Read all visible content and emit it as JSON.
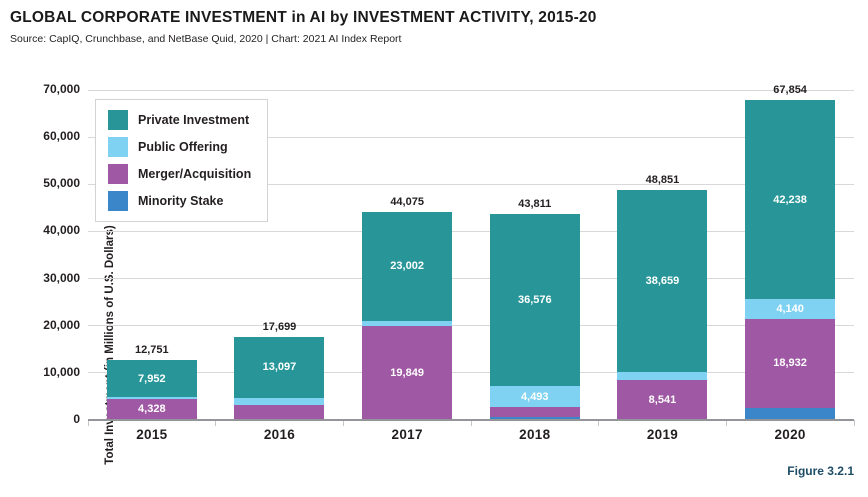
{
  "figure_label": "Figure 3.2.1",
  "colors": {
    "private_investment": "#289699",
    "public_offering": "#7fd2f1",
    "merger_acquisition": "#9f58a4",
    "minority_stake": "#3a86c8",
    "gridline": "#d8d8d8",
    "axis_line": "#939598",
    "text": "#231f20",
    "figure_label": "#1d4c66"
  },
  "chart_data": {
    "type": "bar",
    "stacked": true,
    "title": "GLOBAL CORPORATE INVESTMENT in AI by INVESTMENT ACTIVITY, 2015-20",
    "subtitle": "Source: CapIQ, Crunchbase, and NetBase Quid, 2020 | Chart: 2021 AI Index Report",
    "ylabel": "Total Investment (in Millions of U.S. Dollars)",
    "xlabel": "",
    "categories": [
      "2015",
      "2016",
      "2017",
      "2018",
      "2019",
      "2020"
    ],
    "series": [
      {
        "name": "Private Investment",
        "color": "#289699",
        "values": [
          7952,
          13097,
          23002,
          36576,
          38659,
          42238
        ],
        "value_labels": [
          "7,952",
          "13,097",
          "23,002",
          "36,576",
          "38,659",
          "42,238"
        ]
      },
      {
        "name": "Public Offering",
        "color": "#7fd2f1",
        "values": [
          240,
          1500,
          1100,
          4493,
          1600,
          4140
        ],
        "value_labels": [
          null,
          null,
          null,
          "4,493",
          null,
          "4,140"
        ]
      },
      {
        "name": "Merger/Acquisition",
        "color": "#9f58a4",
        "values": [
          4328,
          3002,
          19849,
          2162,
          8541,
          18932
        ],
        "value_labels": [
          "4,328",
          null,
          "19,849",
          null,
          "8,541",
          "18,932"
        ]
      },
      {
        "name": "Minority Stake",
        "color": "#3a86c8",
        "values": [
          231,
          100,
          124,
          580,
          51,
          2544
        ],
        "value_labels": [
          null,
          null,
          null,
          null,
          null,
          null
        ]
      }
    ],
    "totals": [
      12751,
      17699,
      44075,
      43811,
      48851,
      67854
    ],
    "total_labels": [
      "12,751",
      "17,699",
      "44,075",
      "43,811",
      "48,851",
      "67,854"
    ],
    "ylim": [
      0,
      70000
    ],
    "ytick_step": 10000,
    "ytick_labels": [
      "0",
      "10,000",
      "20,000",
      "30,000",
      "40,000",
      "50,000",
      "60,000",
      "70,000"
    ],
    "grid": true,
    "legend_position": "top-left-inside",
    "stack_order_bottom_to_top": [
      "Minority Stake",
      "Merger/Acquisition",
      "Public Offering",
      "Private Investment"
    ]
  }
}
